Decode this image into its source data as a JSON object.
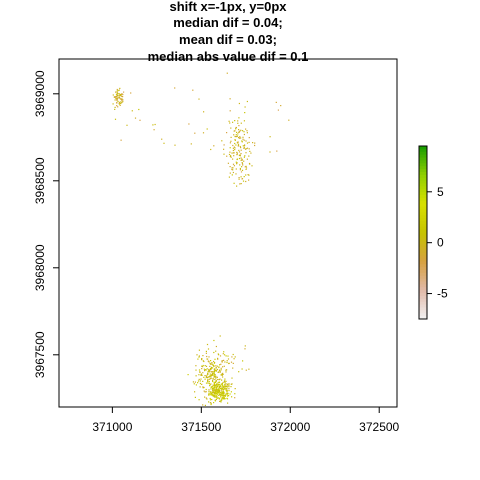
{
  "chart_data": {
    "type": "heatmap",
    "title_lines": [
      "shift x=-1px, y=0px",
      "median dif = 0.04;",
      "mean dif = 0.03;",
      "median abs value dif = 0.1"
    ],
    "xlim": [
      370700,
      372600
    ],
    "ylim": [
      3967200,
      3969200
    ],
    "x_ticks": [
      371000,
      371500,
      372000,
      372500
    ],
    "y_ticks": [
      3967500,
      3968000,
      3968500,
      3969000
    ],
    "legend": {
      "placement": "right",
      "range": [
        -7.5,
        9.5
      ],
      "ticks": [
        -5,
        0,
        5
      ],
      "colors": [
        "#f2f2f2",
        "#e1b9a8",
        "#d6a13f",
        "#c6c400",
        "#d8e000",
        "#8fcf00",
        "#159b00"
      ]
    },
    "clusters": [
      {
        "cx": 371030,
        "cy": 3968980,
        "sx": 18,
        "sy": 25,
        "n": 70,
        "value": -0.5
      },
      {
        "cx": 371710,
        "cy": 3968660,
        "sx": 35,
        "sy": 95,
        "n": 170,
        "value": -0.3
      },
      {
        "cx": 371500,
        "cy": 3968820,
        "sx": 300,
        "sy": 120,
        "n": 45,
        "value": -0.5
      },
      {
        "cx": 371560,
        "cy": 3967380,
        "sx": 55,
        "sy": 70,
        "n": 260,
        "value": 0.3
      },
      {
        "cx": 371600,
        "cy": 3967290,
        "sx": 30,
        "sy": 30,
        "n": 220,
        "value": 1.5
      },
      {
        "cx": 371650,
        "cy": 3967450,
        "sx": 60,
        "sy": 80,
        "n": 35,
        "value": -0.2
      }
    ]
  }
}
